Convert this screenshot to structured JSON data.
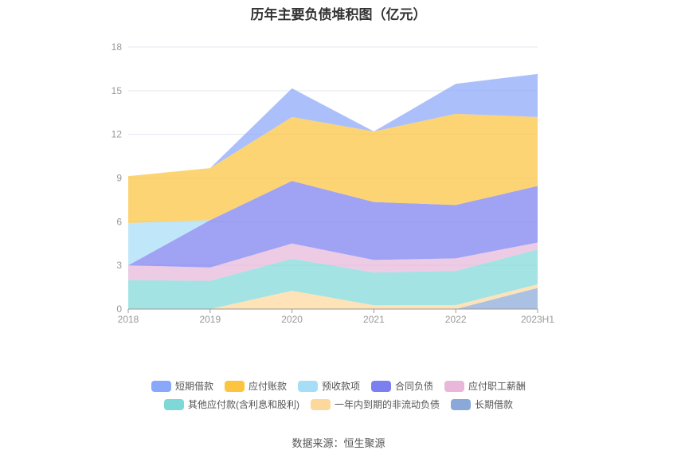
{
  "chart_data": {
    "type": "area",
    "stacked": true,
    "title": "历年主要负债堆积图（亿元）",
    "x": [
      "2018",
      "2019",
      "2020",
      "2021",
      "2022",
      "2023H1"
    ],
    "ylim": [
      0,
      18
    ],
    "yticks": [
      0,
      3,
      6,
      9,
      12,
      15,
      18
    ],
    "grid": true,
    "legend_position": "bottom",
    "series": [
      {
        "name": "长期借款",
        "color": "#8aa9d9",
        "values": [
          0,
          0,
          0,
          0,
          0,
          1.45
        ]
      },
      {
        "name": "一年内到期的非流动负债",
        "color": "#fdd89c",
        "values": [
          0,
          0,
          1.26,
          0.26,
          0.27,
          0.25
        ]
      },
      {
        "name": "其他应付款(含利息和股利)",
        "color": "#7fd8d8",
        "values": [
          1.99,
          1.94,
          2.2,
          2.25,
          2.35,
          2.4
        ]
      },
      {
        "name": "应付职工薪酬",
        "color": "#e8b7d9",
        "values": [
          1.01,
          0.91,
          1.04,
          0.86,
          0.86,
          0.47
        ]
      },
      {
        "name": "合同负债",
        "color": "#7b7ff0",
        "values": [
          0,
          3.26,
          4.3,
          3.98,
          3.67,
          3.88
        ]
      },
      {
        "name": "预收款项",
        "color": "#a6def7",
        "values": [
          2.91,
          0,
          0,
          0,
          0,
          0
        ]
      },
      {
        "name": "应付账款",
        "color": "#fcc43f",
        "values": [
          3.22,
          3.57,
          4.39,
          4.85,
          6.26,
          4.74
        ]
      },
      {
        "name": "短期借款",
        "color": "#8aa8fa",
        "values": [
          0,
          0,
          1.97,
          0,
          2.06,
          2.96
        ]
      }
    ],
    "legend_order": [
      "短期借款",
      "应付账款",
      "预收款项",
      "合同负债",
      "应付职工薪酬",
      "其他应付款(含利息和股利)",
      "一年内到期的非流动负债",
      "长期借款"
    ]
  },
  "source": "数据来源：恒生聚源"
}
